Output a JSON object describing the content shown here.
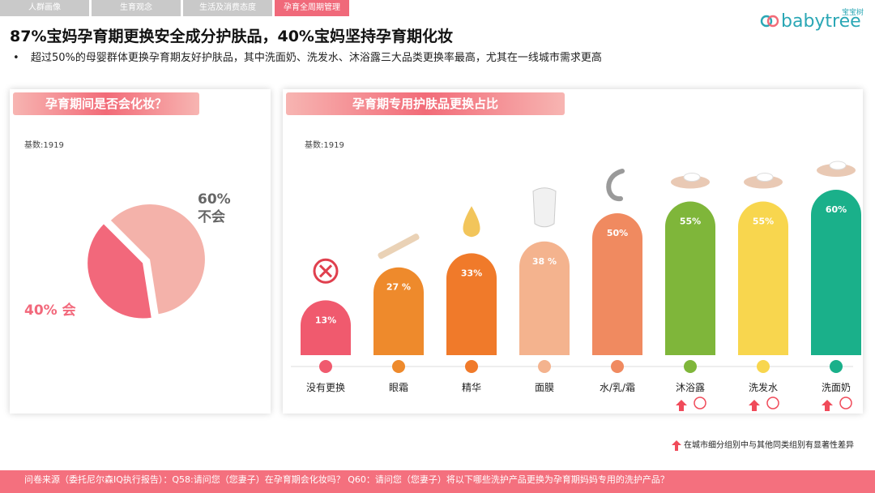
{
  "tabs": [
    {
      "label": "人群画像",
      "active": false
    },
    {
      "label": "生育观念",
      "active": false
    },
    {
      "label": "生活及消费态度",
      "active": false
    },
    {
      "label": "孕育全周期管理",
      "active": true
    }
  ],
  "logo": {
    "word": "babytree",
    "cn": "宝宝树"
  },
  "headline": "87%宝妈孕育期更换安全成分护肤品，40%宝妈坚持孕育期化妆",
  "bullet": "超过50%的母婴群体更换孕育期友好护肤品，其中洗面奶、洗发水、沐浴露三大品类更换率最高，尤其在一线城市需求更高",
  "bullet_marker": "•",
  "left_panel": {
    "title": "孕育期间是否会化妆？",
    "base": "基数:1919",
    "chart_data": {
      "type": "pie",
      "slices": [
        {
          "label": "不会",
          "value": 60,
          "display": "60%",
          "color": "#f4b2aa"
        },
        {
          "label": "会",
          "value": 40,
          "display": "40% 会",
          "color": "#f2687b"
        }
      ]
    }
  },
  "right_panel": {
    "title": "孕育期专用护肤品更换占比",
    "base": "基数:1919",
    "chart_data": {
      "type": "bar",
      "categories": [
        "没有更换",
        "眼霜",
        "精华",
        "面膜",
        "水/乳/霜",
        "沐浴露",
        "洗发水",
        "洗面奶"
      ],
      "values": [
        13,
        27,
        33,
        38,
        50,
        55,
        55,
        60
      ],
      "labels": [
        "13%",
        "27 %",
        "33%",
        "38 %",
        "50%",
        "55%",
        "55%",
        "60%"
      ],
      "colors": [
        "#f05a6e",
        "#ee8a2c",
        "#f07a2a",
        "#f4b38e",
        "#f08a60",
        "#7fb63a",
        "#f8d64e",
        "#1ab08a"
      ],
      "significant": [
        false,
        false,
        false,
        false,
        false,
        true,
        true,
        true
      ],
      "ylim": [
        0,
        60
      ]
    }
  },
  "footnote": "在城市细分组别中与其他同类组别有显著性差异",
  "footer": "问卷来源（委托尼尔森IQ执行报告）：Q58:请问您（您妻子）在孕育期会化妆吗？ Q60：请问您（您妻子）将以下哪些洗护产品更换为孕育期妈妈专用的洗护产品？"
}
